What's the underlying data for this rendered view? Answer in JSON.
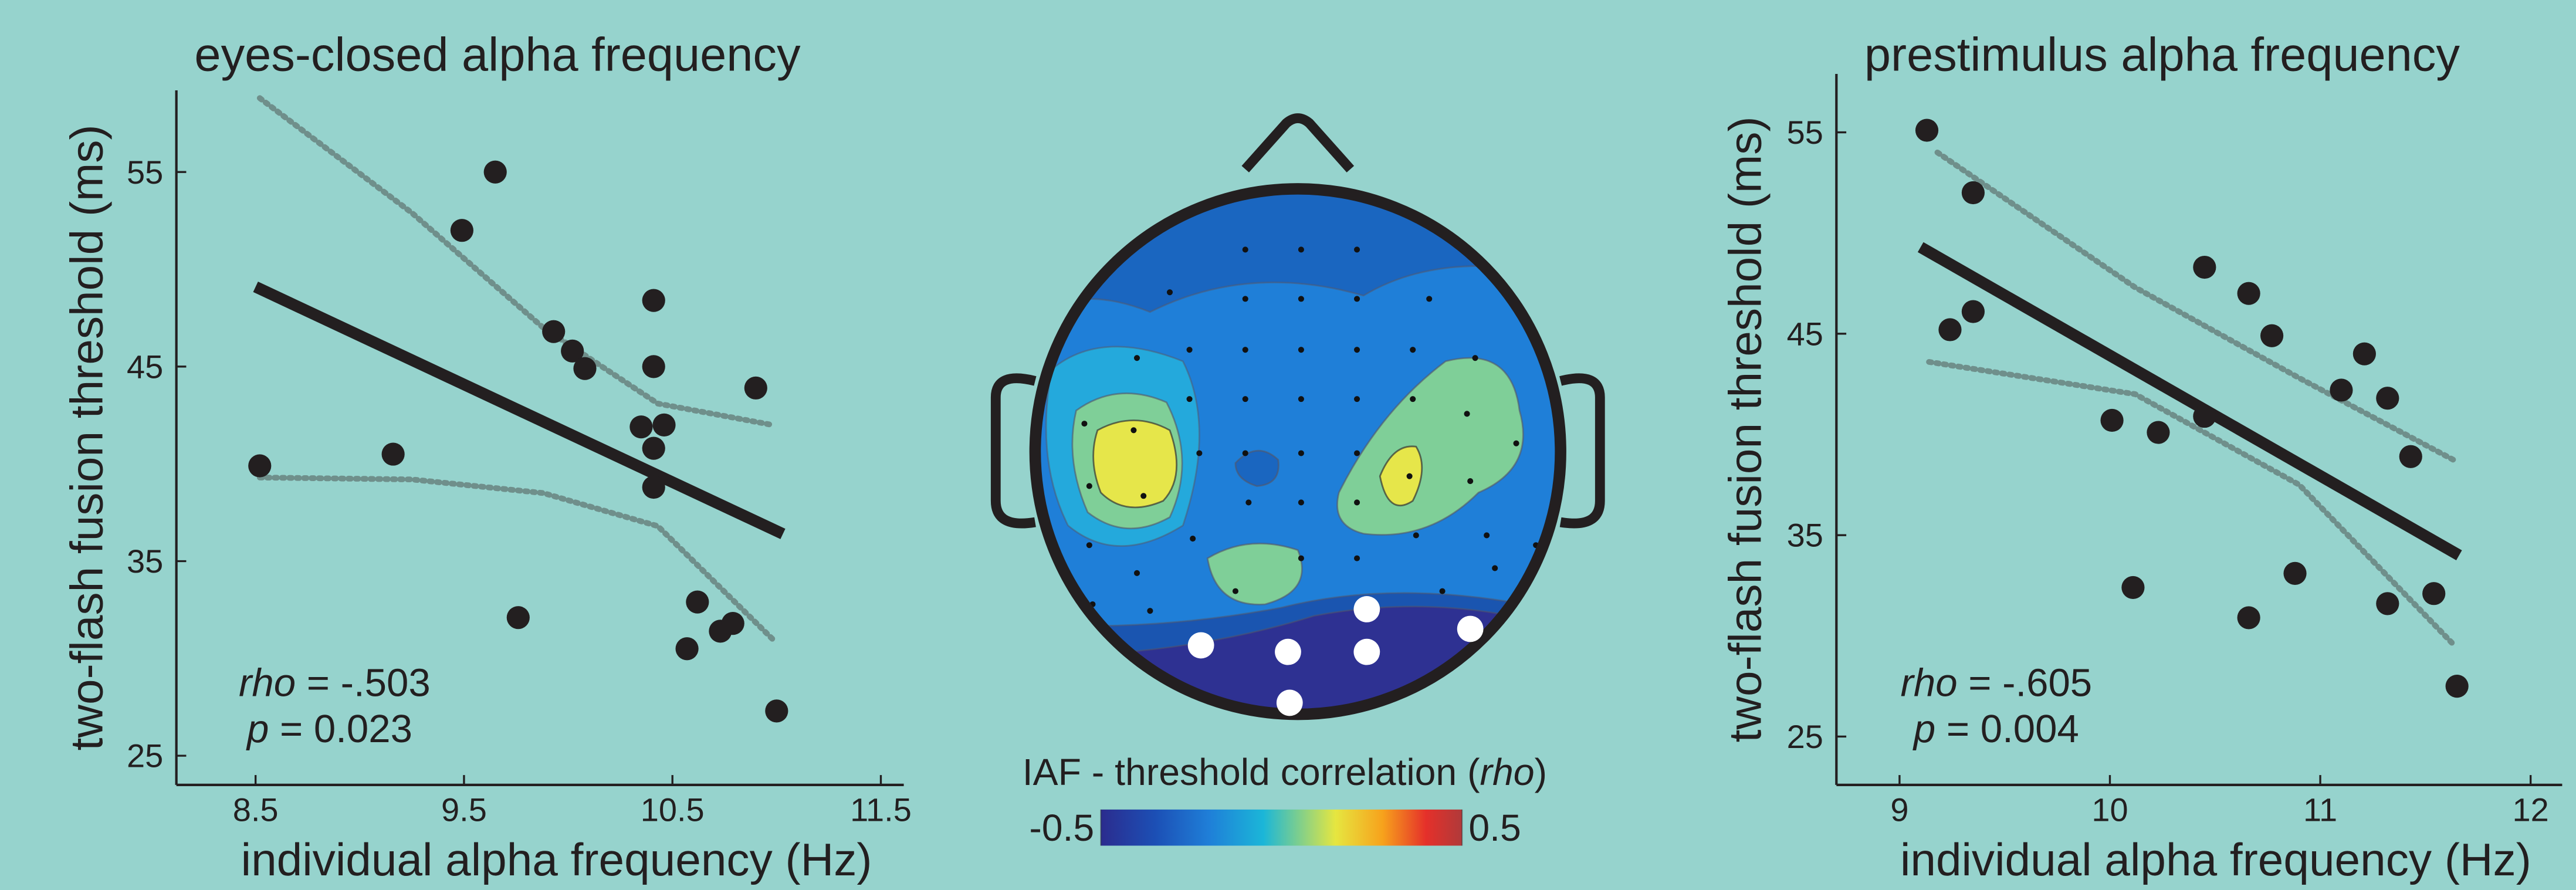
{
  "chart_data": [
    {
      "type": "scatter",
      "title": "eyes-closed alpha frequency",
      "xlabel": "individual alpha frequency (Hz)",
      "ylabel": "two-flash fusion threshold (ms)",
      "xlim": [
        8.12,
        11.61
      ],
      "ylim": [
        23.5,
        59.2
      ],
      "xticks": [
        8.5,
        9.5,
        10.5,
        11.5
      ],
      "yticks": [
        25,
        35,
        45,
        55
      ],
      "color": "#231f20",
      "x": [
        8.52,
        9.16,
        9.49,
        9.65,
        9.76,
        9.93,
        10.02,
        10.08,
        10.35,
        10.41,
        10.41,
        10.41,
        10.41,
        10.46,
        10.57,
        10.62,
        10.73,
        10.79,
        10.9,
        11.0
      ],
      "y": [
        39.9,
        40.5,
        52.0,
        55.0,
        32.1,
        46.8,
        45.8,
        44.9,
        41.9,
        48.4,
        45.0,
        40.8,
        38.8,
        42.0,
        30.5,
        32.9,
        31.4,
        31.8,
        43.9,
        27.3
      ],
      "fit": {
        "x": [
          8.5,
          11.03
        ],
        "y": [
          49.1,
          36.4
        ]
      },
      "ci_upper": {
        "x": [
          8.52,
          9.25,
          9.88,
          10.43,
          10.98
        ],
        "y": [
          58.8,
          52.9,
          47.0,
          43.1,
          42.0
        ]
      },
      "ci_lower": {
        "x": [
          8.52,
          9.25,
          9.88,
          10.43,
          10.98
        ],
        "y": [
          39.3,
          39.2,
          38.5,
          36.8,
          31.0
        ]
      },
      "stat_label": "rho",
      "stat_value": " = -.503",
      "p_label": "p",
      "p_value": " = 0.023"
    },
    {
      "type": "topomap",
      "colorbar_label": "IAF - threshold correlation (",
      "colorbar_label_em": "rho",
      "colorbar_label_end": ")",
      "clim": [
        -0.5,
        0.5
      ],
      "cticks": [
        -0.5,
        0.5
      ]
    },
    {
      "type": "scatter",
      "title": "prestimulus alpha frequency",
      "xlabel": "individual alpha frequency (Hz)",
      "ylabel": "two-flash fusion threshold (ms)",
      "xlim": [
        8.7,
        12.15
      ],
      "ylim": [
        22.6,
        57.9
      ],
      "xticks": [
        9,
        10,
        11,
        12
      ],
      "yticks": [
        25,
        35,
        45,
        55
      ],
      "color": "#231f20",
      "x": [
        9.13,
        9.35,
        9.24,
        9.35,
        10.01,
        10.23,
        10.11,
        10.45,
        10.45,
        10.66,
        10.66,
        10.77,
        10.88,
        11.1,
        11.21,
        11.32,
        11.32,
        11.43,
        11.54,
        11.65
      ],
      "y": [
        55.1,
        52.0,
        45.2,
        46.1,
        40.7,
        40.1,
        32.4,
        40.9,
        48.3,
        47.0,
        30.9,
        44.9,
        33.1,
        42.2,
        44.0,
        41.8,
        31.6,
        38.9,
        32.1,
        27.5
      ],
      "fit": {
        "x": [
          9.1,
          11.66
        ],
        "y": [
          49.3,
          34.0
        ]
      },
      "ci_upper": {
        "x": [
          9.18,
          10.12,
          10.9,
          11.64
        ],
        "y": [
          54.0,
          47.3,
          42.8,
          38.7
        ]
      },
      "ci_lower": {
        "x": [
          9.14,
          10.12,
          10.9,
          11.64
        ],
        "y": [
          43.6,
          42.0,
          37.5,
          29.5
        ]
      },
      "stat_label": "rho",
      "stat_value": " = -.605",
      "p_label": "p",
      "p_value": " = 0.004"
    }
  ]
}
